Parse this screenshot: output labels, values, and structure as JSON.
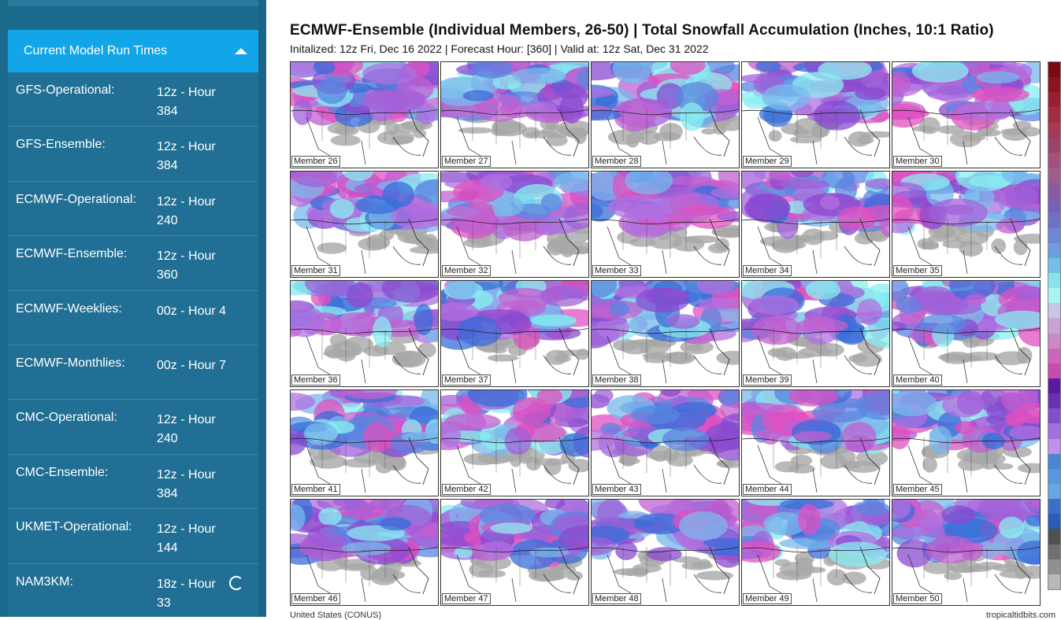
{
  "sidebar": {
    "panel_title": "Current Model Run Times",
    "runs": [
      {
        "name": "GFS-Operational:",
        "value": "12z - Hour 384"
      },
      {
        "name": "GFS-Ensemble:",
        "value": "12z - Hour 384"
      },
      {
        "name": "ECMWF-Operational:",
        "value": "12z - Hour 240"
      },
      {
        "name": "ECMWF-Ensemble:",
        "value": "12z - Hour 360"
      },
      {
        "name": "ECMWF-Weeklies:",
        "value": "00z - Hour 4"
      },
      {
        "name": "ECMWF-Monthlies:",
        "value": "00z - Hour 7"
      },
      {
        "name": "CMC-Operational:",
        "value": "12z - Hour 240"
      },
      {
        "name": "CMC-Ensemble:",
        "value": "12z - Hour 384"
      },
      {
        "name": "UKMET-Operational:",
        "value": "12z - Hour 144"
      },
      {
        "name": "NAM3KM:",
        "value": "18z - Hour 33"
      }
    ]
  },
  "chart": {
    "title": "ECMWF-Ensemble (Individual Members, 26-50) | Total Snowfall Accumulation (Inches, 10:1 Ratio)",
    "subtitle": "Initalized: 12z Fri, Dec 16 2022 | Forecast Hour: [360] | Valid at: 12z Sat, Dec 31 2022",
    "members": [
      "Member 26",
      "Member 27",
      "Member 28",
      "Member 29",
      "Member 30",
      "Member 31",
      "Member 32",
      "Member 33",
      "Member 34",
      "Member 35",
      "Member 36",
      "Member 37",
      "Member 38",
      "Member 39",
      "Member 40",
      "Member 41",
      "Member 42",
      "Member 43",
      "Member 44",
      "Member 45",
      "Member 46",
      "Member 47",
      "Member 48",
      "Member 49",
      "Member 50"
    ],
    "colorbar_colors": [
      "#7a0a12",
      "#8c1420",
      "#9a2030",
      "#a42c40",
      "#a43a55",
      "#9c4468",
      "#a2507c",
      "#a05c8c",
      "#8c5aa0",
      "#7860b4",
      "#7070c8",
      "#6e86d8",
      "#6c9ee0",
      "#72c0e6",
      "#88e4ea",
      "#a8f4f4",
      "#c4c8e4",
      "#c8a4d4",
      "#cc88c8",
      "#cc66bc",
      "#c84cb0",
      "#5a1aa0",
      "#6a30b4",
      "#8050c8",
      "#a070dc",
      "#c090ec",
      "#4a86d4",
      "#5a96dc",
      "#6aa6e4",
      "#3a70c8",
      "#2a5cb8",
      "#505050",
      "#707070",
      "#909090",
      "#b8b8b8"
    ],
    "footer_left": "United States (CONUS)",
    "footer_right": "tropicaltidbits.com"
  }
}
